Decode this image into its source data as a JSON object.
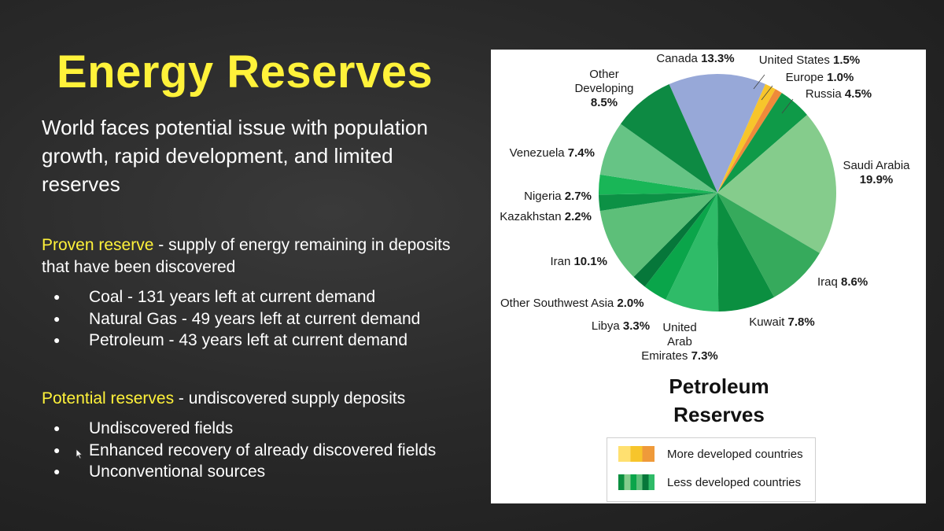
{
  "slide": {
    "title": "Energy Reserves",
    "subtitle": "World faces potential issue with population growth, rapid development, and limited reserves"
  },
  "proven": {
    "term": "Proven reserve",
    "definition": " - supply of energy remaining in deposits that have been discovered",
    "items": [
      "Coal - 131 years left at current demand",
      "Natural Gas - 49 years left at current demand",
      "Petroleum - 43 years left at current demand"
    ]
  },
  "potential": {
    "term": "Potential reserves",
    "definition": " - undiscovered supply deposits",
    "items": [
      "Undiscovered fields",
      "Enhanced recovery of already discovered fields",
      "Unconventional sources"
    ]
  },
  "chart_data": {
    "type": "pie",
    "title": "Petroleum Reserves",
    "slices": [
      {
        "name": "Canada",
        "value": 13.3,
        "label": "13.3%",
        "color": "#97a8d8"
      },
      {
        "name": "United States",
        "value": 1.5,
        "label": "1.5%",
        "color": "#f7c52b"
      },
      {
        "name": "Europe",
        "value": 1.0,
        "label": "1.0%",
        "color": "#ef8a3a"
      },
      {
        "name": "Russia",
        "value": 4.5,
        "label": "4.5%",
        "color": "#0f9a48"
      },
      {
        "name": "Saudi Arabia",
        "value": 19.9,
        "label": "19.9%",
        "color": "#85cc8c"
      },
      {
        "name": "Iraq",
        "value": 8.6,
        "label": "8.6%",
        "color": "#36aa5c"
      },
      {
        "name": "Kuwait",
        "value": 7.8,
        "label": "7.8%",
        "color": "#0b8f40"
      },
      {
        "name": "United Arab Emirates",
        "value": 7.3,
        "label": "7.3%",
        "color": "#2fbb68"
      },
      {
        "name": "Libya",
        "value": 3.3,
        "label": "3.3%",
        "color": "#0aa54a"
      },
      {
        "name": "Other Southwest Asia",
        "value": 2.0,
        "label": "2.0%",
        "color": "#06773a"
      },
      {
        "name": "Iran",
        "value": 10.1,
        "label": "10.1%",
        "color": "#5dbf79"
      },
      {
        "name": "Kazakhstan",
        "value": 2.2,
        "label": "2.2%",
        "color": "#0c9145"
      },
      {
        "name": "Nigeria",
        "value": 2.7,
        "label": "2.7%",
        "color": "#19b657"
      },
      {
        "name": "Venezuela",
        "value": 7.4,
        "label": "7.4%",
        "color": "#66c485"
      },
      {
        "name": "Other Developing",
        "value": 8.5,
        "label": "8.5%",
        "color": "#0d8a43"
      }
    ],
    "legend": [
      {
        "label": "More developed countries",
        "colors": [
          "#ffe070",
          "#f7c52b",
          "#ef9a3a"
        ]
      },
      {
        "label": "Less developed countries",
        "colors": [
          "#0b8f40",
          "#85cc8c",
          "#0aa54a",
          "#5dbf79",
          "#06773a",
          "#2fbb68"
        ]
      }
    ]
  }
}
